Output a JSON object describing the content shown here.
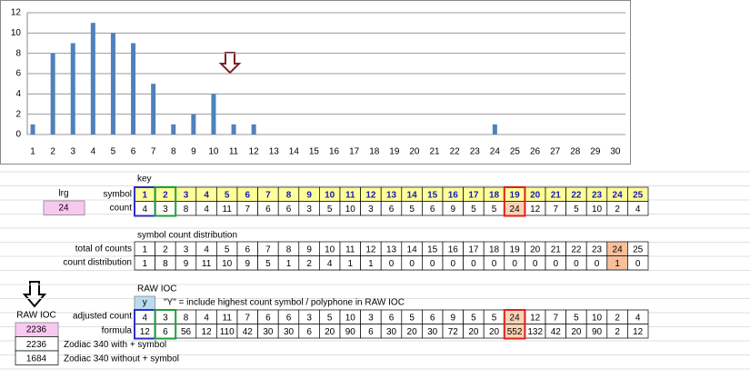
{
  "chart_data": {
    "type": "bar",
    "categories": [
      1,
      2,
      3,
      4,
      5,
      6,
      7,
      8,
      9,
      10,
      11,
      12,
      13,
      14,
      15,
      16,
      17,
      18,
      19,
      20,
      21,
      22,
      23,
      24,
      25,
      26,
      27,
      28,
      29,
      30
    ],
    "values": [
      1,
      8,
      9,
      11,
      10,
      9,
      5,
      1,
      2,
      4,
      1,
      1,
      0,
      0,
      0,
      0,
      0,
      0,
      0,
      0,
      0,
      0,
      0,
      1,
      0,
      0,
      0,
      0,
      0,
      0
    ],
    "color": "#4f81bd",
    "ylim": [
      0,
      12
    ],
    "yticks": [
      0,
      2,
      4,
      6,
      8,
      10,
      12
    ],
    "grid": true
  },
  "sheet": {
    "key_label": "key",
    "lrg": {
      "label": "lrg",
      "value": 24
    },
    "symbol_label": "symbol",
    "symbols": [
      1,
      2,
      3,
      4,
      5,
      6,
      7,
      8,
      9,
      10,
      11,
      12,
      13,
      14,
      15,
      16,
      17,
      18,
      19,
      20,
      21,
      22,
      23,
      24,
      25
    ],
    "count_label": "count",
    "counts": [
      4,
      3,
      8,
      4,
      11,
      7,
      6,
      6,
      3,
      5,
      10,
      3,
      6,
      5,
      6,
      9,
      5,
      5,
      24,
      12,
      7,
      5,
      10,
      2,
      4
    ],
    "dist_title": "symbol count distribution",
    "totals_label": "total of counts",
    "totals": [
      1,
      2,
      3,
      4,
      5,
      6,
      7,
      8,
      9,
      10,
      11,
      12,
      13,
      14,
      15,
      16,
      17,
      18,
      19,
      20,
      21,
      22,
      23,
      24,
      25
    ],
    "dist_label": "count distribution",
    "distribution": [
      1,
      8,
      9,
      11,
      10,
      9,
      5,
      1,
      2,
      4,
      1,
      1,
      0,
      0,
      0,
      0,
      0,
      0,
      0,
      0,
      0,
      0,
      0,
      1,
      0
    ],
    "raw_title": "RAW IOC",
    "y_flag": "y",
    "y_note": "\"Y\" = include highest count symbol / polyphone in RAW IOC",
    "adjusted_label": "adjusted count",
    "adjusted": [
      4,
      3,
      8,
      4,
      11,
      7,
      6,
      6,
      3,
      5,
      10,
      3,
      6,
      5,
      6,
      9,
      5,
      5,
      24,
      12,
      7,
      5,
      10,
      2,
      4
    ],
    "formula_label": "formula",
    "formula": [
      12,
      6,
      56,
      12,
      110,
      42,
      30,
      30,
      6,
      20,
      90,
      6,
      30,
      20,
      30,
      72,
      20,
      20,
      552,
      132,
      42,
      20,
      90,
      2,
      12
    ],
    "raw_ioc": {
      "label": "RAW IOC",
      "value": 2236
    },
    "results": [
      {
        "value": 2236,
        "label": "Zodiac 340 with + symbol"
      },
      {
        "value": 1684,
        "label": "Zodiac 340 without + symbol"
      }
    ]
  }
}
